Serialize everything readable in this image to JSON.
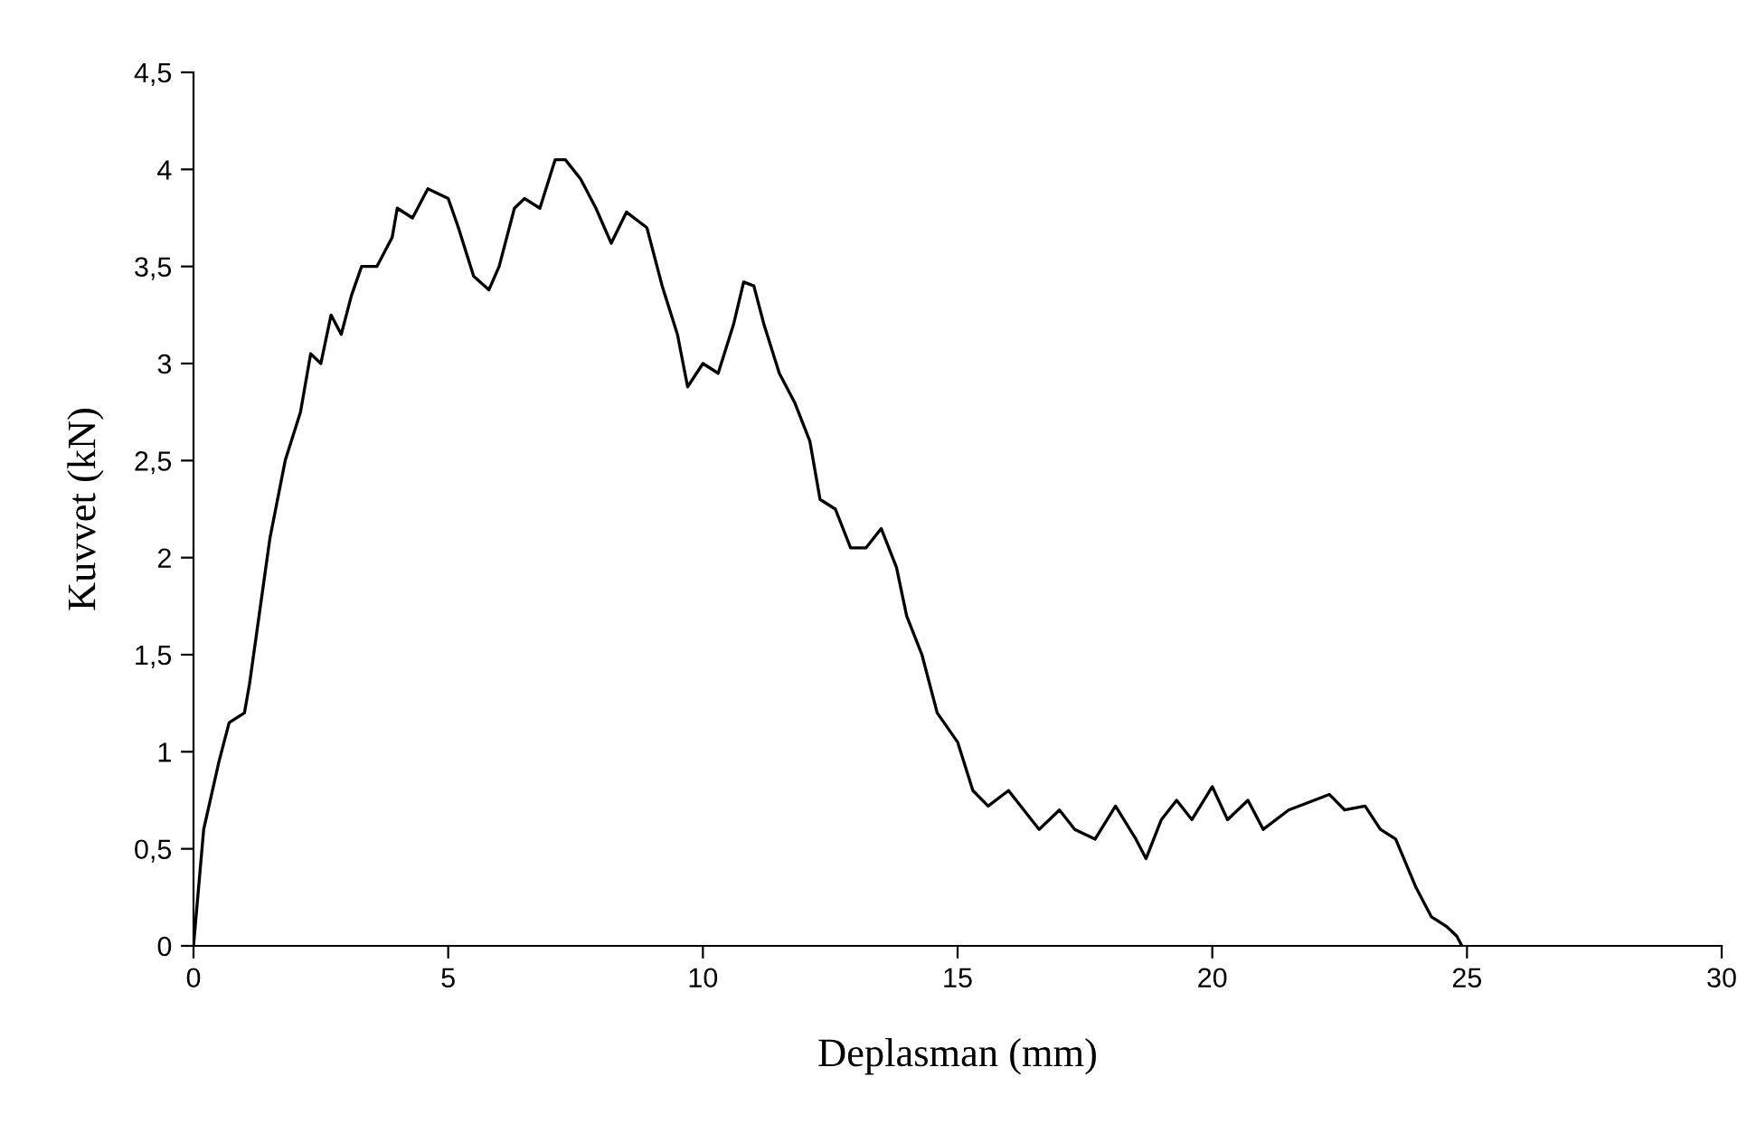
{
  "chart_data": {
    "type": "line",
    "xlabel": "Deplasman (mm)",
    "ylabel": "Kuvvet (kN)",
    "xlim": [
      0,
      30
    ],
    "ylim": [
      0,
      4.5
    ],
    "xticks": [
      0,
      5,
      10,
      15,
      20,
      25,
      30
    ],
    "yticks": [
      0,
      {
        "value": 0.5,
        "label": "0,5"
      },
      1,
      {
        "value": 1.5,
        "label": "1,5"
      },
      2,
      {
        "value": 2.5,
        "label": "2,5"
      },
      3,
      {
        "value": 3.5,
        "label": "3,5"
      },
      4,
      {
        "value": 4.5,
        "label": "4,5"
      }
    ],
    "marker": "none",
    "line_style": "solid",
    "series": [
      {
        "color": "#000000",
        "x": [
          0,
          0.2,
          0.5,
          0.7,
          1.0,
          1.1,
          1.5,
          1.8,
          2.1,
          2.3,
          2.5,
          2.7,
          2.9,
          3.1,
          3.3,
          3.6,
          3.9,
          4.0,
          4.3,
          4.6,
          5.0,
          5.2,
          5.5,
          5.8,
          6.0,
          6.3,
          6.5,
          6.8,
          7.1,
          7.3,
          7.6,
          7.9,
          8.2,
          8.5,
          8.9,
          9.2,
          9.5,
          9.7,
          10.0,
          10.3,
          10.6,
          10.8,
          11.0,
          11.2,
          11.5,
          11.8,
          12.1,
          12.3,
          12.6,
          12.9,
          13.2,
          13.5,
          13.8,
          14.0,
          14.3,
          14.6,
          15.0,
          15.3,
          15.6,
          16.0,
          16.3,
          16.6,
          17.0,
          17.3,
          17.7,
          18.1,
          18.5,
          18.7,
          19.0,
          19.3,
          19.6,
          20.0,
          20.3,
          20.7,
          21.0,
          21.5,
          22.0,
          22.3,
          22.6,
          23.0,
          23.3,
          23.6,
          24.0,
          24.3,
          24.6,
          24.8,
          24.9
        ],
        "values": [
          0,
          0.6,
          0.95,
          1.15,
          1.2,
          1.35,
          2.1,
          2.5,
          2.75,
          3.05,
          3.0,
          3.25,
          3.15,
          3.35,
          3.5,
          3.5,
          3.65,
          3.8,
          3.75,
          3.9,
          3.85,
          3.7,
          3.45,
          3.38,
          3.5,
          3.8,
          3.85,
          3.8,
          4.05,
          4.05,
          3.95,
          3.8,
          3.62,
          3.78,
          3.7,
          3.4,
          3.15,
          2.88,
          3.0,
          2.95,
          3.2,
          3.42,
          3.4,
          3.2,
          2.95,
          2.8,
          2.6,
          2.3,
          2.25,
          2.05,
          2.05,
          2.15,
          1.95,
          1.7,
          1.5,
          1.2,
          1.05,
          0.8,
          0.72,
          0.8,
          0.7,
          0.6,
          0.7,
          0.6,
          0.55,
          0.72,
          0.55,
          0.45,
          0.65,
          0.75,
          0.65,
          0.82,
          0.65,
          0.75,
          0.6,
          0.7,
          0.75,
          0.78,
          0.7,
          0.72,
          0.6,
          0.55,
          0.3,
          0.15,
          0.1,
          0.05,
          0
        ]
      }
    ]
  }
}
